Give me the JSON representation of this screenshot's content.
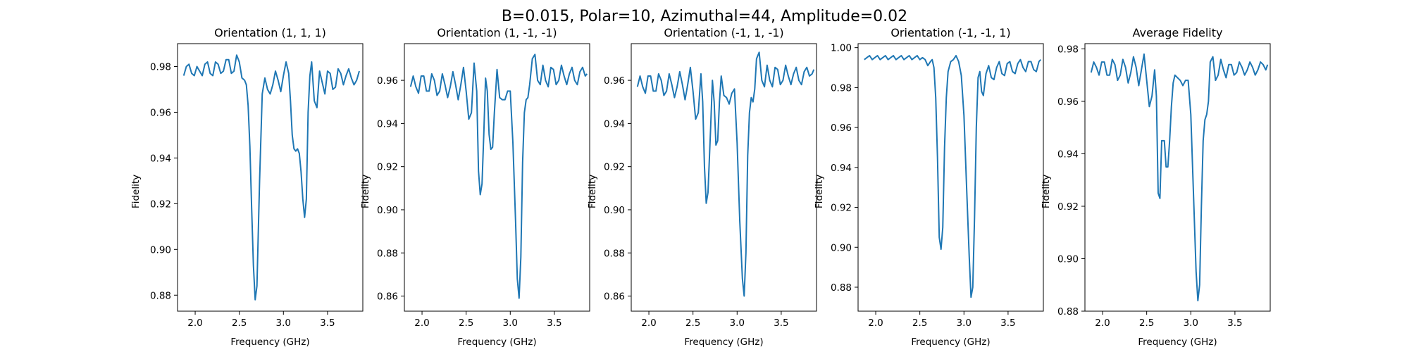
{
  "figure": {
    "suptitle": "B=0.015, Polar=10, Azimuthal=44, Amplitude=0.02"
  },
  "chart_data": [
    {
      "type": "line",
      "title": "Orientation (1, 1, 1)",
      "xlabel": "Frequency (GHz)",
      "ylabel": "Fidelity",
      "xlim": [
        1.8,
        3.9
      ],
      "ylim": [
        0.873,
        0.99
      ],
      "xticks": [
        2.0,
        2.5,
        3.0,
        3.5
      ],
      "yticks": [
        0.88,
        0.9,
        0.92,
        0.94,
        0.96,
        0.98
      ],
      "grid": false,
      "color": "#1f77b4",
      "x": [
        1.87,
        1.9,
        1.93,
        1.96,
        1.99,
        2.02,
        2.05,
        2.08,
        2.11,
        2.14,
        2.17,
        2.2,
        2.23,
        2.26,
        2.29,
        2.32,
        2.35,
        2.38,
        2.41,
        2.44,
        2.47,
        2.5,
        2.53,
        2.56,
        2.58,
        2.6,
        2.62,
        2.64,
        2.66,
        2.68,
        2.7,
        2.73,
        2.76,
        2.79,
        2.82,
        2.85,
        2.88,
        2.91,
        2.94,
        2.97,
        3.0,
        3.03,
        3.06,
        3.08,
        3.1,
        3.12,
        3.14,
        3.16,
        3.18,
        3.2,
        3.22,
        3.24,
        3.26,
        3.28,
        3.3,
        3.32,
        3.35,
        3.38,
        3.41,
        3.44,
        3.47,
        3.5,
        3.53,
        3.56,
        3.59,
        3.62,
        3.65,
        3.68,
        3.71,
        3.74,
        3.77,
        3.8,
        3.83,
        3.86
      ],
      "y": [
        0.976,
        0.98,
        0.981,
        0.977,
        0.976,
        0.98,
        0.978,
        0.976,
        0.981,
        0.982,
        0.977,
        0.976,
        0.982,
        0.981,
        0.977,
        0.978,
        0.983,
        0.983,
        0.977,
        0.978,
        0.985,
        0.982,
        0.975,
        0.974,
        0.972,
        0.963,
        0.945,
        0.918,
        0.893,
        0.878,
        0.884,
        0.93,
        0.968,
        0.975,
        0.97,
        0.968,
        0.972,
        0.978,
        0.974,
        0.969,
        0.976,
        0.982,
        0.977,
        0.965,
        0.95,
        0.944,
        0.943,
        0.944,
        0.942,
        0.934,
        0.922,
        0.914,
        0.922,
        0.96,
        0.976,
        0.982,
        0.965,
        0.962,
        0.978,
        0.973,
        0.968,
        0.978,
        0.977,
        0.97,
        0.971,
        0.979,
        0.977,
        0.972,
        0.976,
        0.979,
        0.975,
        0.972,
        0.974,
        0.978
      ]
    },
    {
      "type": "line",
      "title": "Orientation (1, -1, -1)",
      "xlabel": "Frequency (GHz)",
      "ylabel": "Fidelity",
      "xlim": [
        1.8,
        3.9
      ],
      "ylim": [
        0.853,
        0.977
      ],
      "xticks": [
        2.0,
        2.5,
        3.0,
        3.5
      ],
      "yticks": [
        0.86,
        0.88,
        0.9,
        0.92,
        0.94,
        0.96
      ],
      "grid": false,
      "color": "#1f77b4",
      "x": [
        1.87,
        1.9,
        1.93,
        1.96,
        1.99,
        2.02,
        2.05,
        2.08,
        2.11,
        2.14,
        2.17,
        2.2,
        2.23,
        2.26,
        2.29,
        2.32,
        2.35,
        2.38,
        2.41,
        2.44,
        2.47,
        2.5,
        2.53,
        2.56,
        2.59,
        2.62,
        2.64,
        2.66,
        2.68,
        2.7,
        2.72,
        2.74,
        2.76,
        2.78,
        2.8,
        2.82,
        2.85,
        2.88,
        2.91,
        2.94,
        2.97,
        3.0,
        3.03,
        3.06,
        3.08,
        3.1,
        3.12,
        3.14,
        3.16,
        3.18,
        3.2,
        3.22,
        3.25,
        3.28,
        3.31,
        3.34,
        3.37,
        3.4,
        3.43,
        3.46,
        3.49,
        3.52,
        3.55,
        3.58,
        3.61,
        3.64,
        3.67,
        3.7,
        3.73,
        3.76,
        3.79,
        3.82,
        3.85,
        3.87
      ],
      "y": [
        0.957,
        0.962,
        0.957,
        0.954,
        0.962,
        0.962,
        0.955,
        0.955,
        0.963,
        0.96,
        0.953,
        0.955,
        0.963,
        0.958,
        0.952,
        0.957,
        0.964,
        0.958,
        0.951,
        0.958,
        0.966,
        0.955,
        0.942,
        0.945,
        0.968,
        0.955,
        0.918,
        0.907,
        0.912,
        0.935,
        0.961,
        0.955,
        0.935,
        0.928,
        0.929,
        0.945,
        0.965,
        0.952,
        0.951,
        0.951,
        0.955,
        0.955,
        0.931,
        0.895,
        0.868,
        0.859,
        0.878,
        0.922,
        0.945,
        0.951,
        0.952,
        0.958,
        0.97,
        0.972,
        0.96,
        0.958,
        0.967,
        0.96,
        0.957,
        0.966,
        0.965,
        0.958,
        0.96,
        0.967,
        0.962,
        0.958,
        0.963,
        0.966,
        0.96,
        0.958,
        0.964,
        0.966,
        0.962,
        0.963
      ]
    },
    {
      "type": "line",
      "title": "Orientation (-1, 1, -1)",
      "xlabel": "Frequency (GHz)",
      "ylabel": "Fidelity",
      "xlim": [
        1.8,
        3.9
      ],
      "ylim": [
        0.853,
        0.977
      ],
      "xticks": [
        2.0,
        2.5,
        3.0,
        3.5
      ],
      "yticks": [
        0.86,
        0.88,
        0.9,
        0.92,
        0.94,
        0.96
      ],
      "grid": false,
      "color": "#1f77b4",
      "x": [
        1.87,
        1.9,
        1.93,
        1.96,
        1.99,
        2.02,
        2.05,
        2.08,
        2.11,
        2.14,
        2.17,
        2.2,
        2.23,
        2.26,
        2.29,
        2.32,
        2.35,
        2.38,
        2.41,
        2.44,
        2.47,
        2.5,
        2.53,
        2.56,
        2.59,
        2.61,
        2.63,
        2.65,
        2.67,
        2.7,
        2.72,
        2.74,
        2.76,
        2.78,
        2.8,
        2.82,
        2.85,
        2.88,
        2.91,
        2.94,
        2.97,
        3.0,
        3.03,
        3.06,
        3.08,
        3.1,
        3.12,
        3.14,
        3.16,
        3.18,
        3.2,
        3.22,
        3.25,
        3.28,
        3.31,
        3.34,
        3.37,
        3.4,
        3.43,
        3.46,
        3.49,
        3.52,
        3.55,
        3.58,
        3.61,
        3.64,
        3.67,
        3.7,
        3.73,
        3.76,
        3.79,
        3.82,
        3.85,
        3.87
      ],
      "y": [
        0.957,
        0.962,
        0.957,
        0.954,
        0.962,
        0.962,
        0.955,
        0.955,
        0.963,
        0.96,
        0.953,
        0.955,
        0.963,
        0.958,
        0.952,
        0.957,
        0.964,
        0.958,
        0.951,
        0.958,
        0.966,
        0.955,
        0.942,
        0.945,
        0.963,
        0.95,
        0.92,
        0.903,
        0.908,
        0.938,
        0.96,
        0.95,
        0.93,
        0.932,
        0.95,
        0.962,
        0.953,
        0.952,
        0.949,
        0.954,
        0.956,
        0.931,
        0.895,
        0.868,
        0.86,
        0.88,
        0.925,
        0.945,
        0.952,
        0.95,
        0.956,
        0.97,
        0.973,
        0.96,
        0.957,
        0.967,
        0.96,
        0.957,
        0.966,
        0.965,
        0.958,
        0.96,
        0.967,
        0.962,
        0.958,
        0.963,
        0.966,
        0.96,
        0.958,
        0.964,
        0.966,
        0.962,
        0.963,
        0.965
      ]
    },
    {
      "type": "line",
      "title": "Orientation (-1, -1, 1)",
      "xlabel": "Frequency (GHz)",
      "ylabel": "Fidelity",
      "xlim": [
        1.8,
        3.9
      ],
      "ylim": [
        0.868,
        1.002
      ],
      "xticks": [
        2.0,
        2.5,
        3.0,
        3.5
      ],
      "yticks": [
        0.88,
        0.9,
        0.92,
        0.94,
        0.96,
        0.98,
        1.0
      ],
      "grid": false,
      "color": "#1f77b4",
      "x": [
        1.87,
        1.9,
        1.93,
        1.96,
        1.99,
        2.02,
        2.05,
        2.08,
        2.11,
        2.14,
        2.17,
        2.2,
        2.23,
        2.26,
        2.29,
        2.32,
        2.35,
        2.38,
        2.41,
        2.44,
        2.47,
        2.5,
        2.53,
        2.56,
        2.59,
        2.62,
        2.64,
        2.66,
        2.68,
        2.7,
        2.72,
        2.74,
        2.76,
        2.78,
        2.8,
        2.82,
        2.85,
        2.88,
        2.91,
        2.94,
        2.97,
        3.0,
        3.03,
        3.06,
        3.08,
        3.1,
        3.12,
        3.14,
        3.16,
        3.18,
        3.2,
        3.22,
        3.25,
        3.28,
        3.31,
        3.34,
        3.37,
        3.4,
        3.43,
        3.46,
        3.49,
        3.52,
        3.55,
        3.58,
        3.61,
        3.64,
        3.67,
        3.7,
        3.73,
        3.76,
        3.79,
        3.82,
        3.85,
        3.87
      ],
      "y": [
        0.994,
        0.995,
        0.996,
        0.994,
        0.995,
        0.996,
        0.994,
        0.995,
        0.996,
        0.994,
        0.995,
        0.996,
        0.994,
        0.995,
        0.996,
        0.994,
        0.995,
        0.996,
        0.994,
        0.995,
        0.996,
        0.994,
        0.995,
        0.994,
        0.991,
        0.993,
        0.994,
        0.99,
        0.975,
        0.945,
        0.905,
        0.899,
        0.91,
        0.95,
        0.975,
        0.988,
        0.993,
        0.994,
        0.996,
        0.993,
        0.986,
        0.966,
        0.93,
        0.895,
        0.875,
        0.88,
        0.915,
        0.96,
        0.985,
        0.988,
        0.978,
        0.976,
        0.987,
        0.991,
        0.985,
        0.984,
        0.99,
        0.993,
        0.987,
        0.986,
        0.992,
        0.993,
        0.988,
        0.987,
        0.992,
        0.994,
        0.99,
        0.988,
        0.993,
        0.993,
        0.989,
        0.988,
        0.993,
        0.994
      ]
    },
    {
      "type": "line",
      "title": "Average Fidelity",
      "xlabel": "Frequency (GHz)",
      "ylabel": "Fidelity",
      "xlim": [
        1.8,
        3.9
      ],
      "ylim": [
        0.88,
        0.982
      ],
      "xticks": [
        2.0,
        2.5,
        3.0,
        3.5
      ],
      "yticks": [
        0.88,
        0.9,
        0.92,
        0.94,
        0.96,
        0.98
      ],
      "grid": false,
      "color": "#1f77b4",
      "x": [
        1.87,
        1.9,
        1.93,
        1.96,
        1.99,
        2.02,
        2.05,
        2.08,
        2.11,
        2.14,
        2.17,
        2.2,
        2.23,
        2.26,
        2.29,
        2.32,
        2.35,
        2.38,
        2.41,
        2.44,
        2.47,
        2.5,
        2.53,
        2.56,
        2.59,
        2.61,
        2.63,
        2.65,
        2.67,
        2.7,
        2.72,
        2.74,
        2.76,
        2.78,
        2.8,
        2.82,
        2.85,
        2.88,
        2.91,
        2.94,
        2.97,
        3.0,
        3.03,
        3.06,
        3.08,
        3.1,
        3.12,
        3.14,
        3.16,
        3.18,
        3.2,
        3.22,
        3.25,
        3.28,
        3.31,
        3.34,
        3.37,
        3.4,
        3.43,
        3.46,
        3.49,
        3.52,
        3.55,
        3.58,
        3.61,
        3.64,
        3.67,
        3.7,
        3.73,
        3.76,
        3.79,
        3.82,
        3.85,
        3.87
      ],
      "y": [
        0.971,
        0.975,
        0.973,
        0.97,
        0.975,
        0.975,
        0.97,
        0.97,
        0.976,
        0.974,
        0.968,
        0.97,
        0.976,
        0.973,
        0.967,
        0.971,
        0.977,
        0.973,
        0.966,
        0.972,
        0.978,
        0.968,
        0.958,
        0.962,
        0.972,
        0.962,
        0.925,
        0.923,
        0.945,
        0.945,
        0.935,
        0.935,
        0.945,
        0.958,
        0.967,
        0.97,
        0.969,
        0.968,
        0.966,
        0.968,
        0.968,
        0.955,
        0.925,
        0.895,
        0.884,
        0.89,
        0.92,
        0.945,
        0.953,
        0.955,
        0.96,
        0.975,
        0.977,
        0.968,
        0.97,
        0.976,
        0.972,
        0.969,
        0.974,
        0.974,
        0.97,
        0.971,
        0.975,
        0.973,
        0.97,
        0.972,
        0.975,
        0.973,
        0.97,
        0.972,
        0.975,
        0.974,
        0.972,
        0.974
      ]
    }
  ]
}
